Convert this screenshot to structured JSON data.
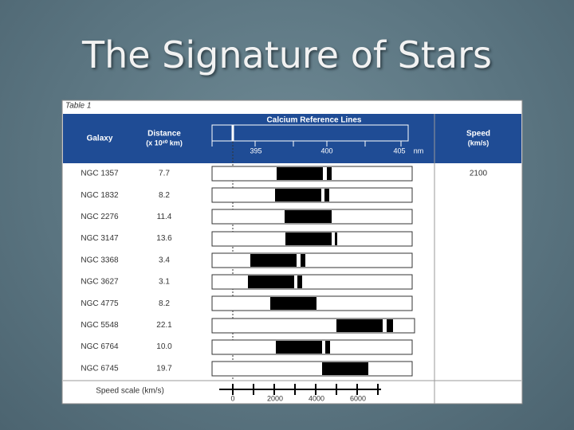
{
  "header": {
    "title": "The Signature of Stars"
  },
  "table": {
    "label": "Table 1",
    "columns": {
      "galaxy": "Galaxy",
      "distance": "Distance",
      "distance_unit": "(x 10²⁰ km)",
      "lines": "Calcium Reference Lines",
      "speed": "Speed",
      "speed_unit": "(km/s)"
    },
    "wavelength_ticks": [
      "395",
      "400",
      "405"
    ],
    "wavelength_unit": "nm",
    "rows": [
      [
        "NGC 1357",
        "7.7",
        "2100"
      ],
      [
        "NGC 1832",
        "8.2"
      ],
      [
        "NGC 2276",
        "11.4"
      ],
      [
        "NGC 3147",
        "13.6"
      ],
      [
        "NGC 3368",
        "3.4"
      ],
      [
        "NGC 3627",
        "3.1"
      ],
      [
        "NGC 4775",
        "8.2"
      ],
      [
        "NGC 5548",
        "22.1"
      ],
      [
        "NGC 6764",
        "10.0"
      ],
      [
        "NGC 6745",
        "19.7"
      ]
    ],
    "scale_label": "Speed scale (km/s)",
    "scale_ticks": [
      "0",
      "2000",
      "4000",
      "6000"
    ]
  }
}
